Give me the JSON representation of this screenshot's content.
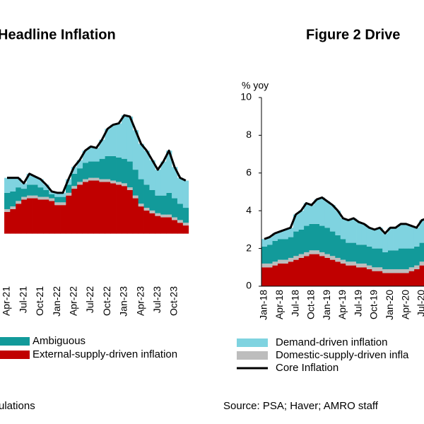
{
  "chart_data": [
    {
      "type": "stacked_bar",
      "title": "Headline Inflation",
      "categories": [
        "Apr-21",
        null,
        null,
        "Jul-21",
        null,
        null,
        "Oct-21",
        null,
        null,
        "Jan-22",
        null,
        null,
        "Apr-22",
        null,
        null,
        "Jul-22",
        null,
        null,
        "Oct-22",
        null,
        null,
        "Jan-23",
        null,
        null,
        "Apr-23",
        null,
        null,
        "Jul-23",
        null,
        null,
        "Oct-23",
        null,
        null
      ],
      "series": [
        {
          "name": "External-supply-driven inflation",
          "color": "#c00000",
          "values": [
            1.6,
            1.8,
            2.2,
            2.5,
            2.6,
            2.6,
            2.5,
            2.5,
            2.4,
            2.1,
            2.1,
            2.8,
            3.3,
            3.6,
            3.8,
            3.9,
            3.9,
            3.8,
            3.8,
            3.7,
            3.6,
            3.5,
            3.2,
            2.6,
            2.0,
            1.7,
            1.5,
            1.3,
            1.2,
            1.2,
            1.0,
            0.8,
            0.6
          ]
        },
        {
          "color": "#bdbdbd",
          "values": [
            0.2,
            0.2,
            0.2,
            0.2,
            0.2,
            0.2,
            0.2,
            0.2,
            0.2,
            0.2,
            0.2,
            0.2,
            0.2,
            0.2,
            0.2,
            0.2,
            0.2,
            0.2,
            0.2,
            0.2,
            0.2,
            0.2,
            0.2,
            0.2,
            0.2,
            0.2,
            0.2,
            0.2,
            0.2,
            0.2,
            0.2,
            0.2,
            0.2
          ]
        },
        {
          "name": "Ambiguous",
          "color": "#129a9a",
          "values": [
            1.2,
            1.1,
            1.0,
            0.6,
            0.8,
            0.8,
            0.7,
            0.5,
            0.3,
            0.4,
            0.4,
            0.6,
            0.9,
            1.0,
            1.2,
            1.2,
            1.2,
            1.5,
            1.7,
            1.8,
            1.8,
            1.8,
            1.9,
            1.9,
            1.8,
            1.7,
            1.5,
            1.3,
            1.4,
            1.6,
            1.4,
            1.2,
            1.1
          ]
        },
        {
          "color": "#7fd3e0",
          "values": [
            1.1,
            1.0,
            0.7,
            0.4,
            0.8,
            0.6,
            0.6,
            0.4,
            0.2,
            0.3,
            0.3,
            0.4,
            0.5,
            0.6,
            0.9,
            1.1,
            1.0,
            1.4,
            2.0,
            2.3,
            2.5,
            3.2,
            3.3,
            2.9,
            2.6,
            2.5,
            2.2,
            1.9,
            2.5,
            3.1,
            2.3,
            1.9,
            2.0
          ]
        },
        {
          "kind": "line",
          "color": "#000000",
          "values": [
            4.1,
            4.1,
            4.1,
            3.7,
            4.4,
            4.2,
            4.0,
            3.6,
            3.1,
            3.0,
            3.0,
            4.0,
            4.9,
            5.4,
            6.1,
            6.4,
            6.3,
            6.9,
            7.7,
            8.0,
            8.1,
            8.7,
            8.6,
            7.6,
            6.6,
            6.1,
            5.4,
            4.7,
            5.3,
            6.1,
            4.9,
            4.1,
            3.9
          ]
        }
      ],
      "ylim": [
        -3.6,
        10
      ],
      "source": "ulations"
    },
    {
      "type": "stacked_bar",
      "title": "Figure 2 Drive",
      "y_label": "% yoy",
      "categories": [
        "Jan-18",
        null,
        null,
        "Apr-18",
        null,
        null,
        "Jul-18",
        null,
        null,
        "Oct-18",
        null,
        null,
        "Jan-19",
        null,
        null,
        "Apr-19",
        null,
        null,
        "Jul-19",
        null,
        null,
        "Oct-19",
        null,
        null,
        "Jan-20",
        null,
        null,
        "Apr-20",
        null,
        null,
        "Jul-20",
        null
      ],
      "series": [
        {
          "color": "#c00000",
          "values": [
            1.0,
            1.0,
            1.1,
            1.2,
            1.2,
            1.3,
            1.4,
            1.5,
            1.6,
            1.7,
            1.7,
            1.6,
            1.5,
            1.4,
            1.3,
            1.2,
            1.1,
            1.1,
            1.0,
            1.0,
            0.9,
            0.8,
            0.8,
            0.7,
            0.7,
            0.7,
            0.7,
            0.7,
            0.8,
            0.9,
            1.1,
            1.2
          ]
        },
        {
          "name": "Domestic-supply-driven infla",
          "color": "#bdbdbd",
          "values": [
            0.2,
            0.2,
            0.2,
            0.2,
            0.2,
            0.2,
            0.2,
            0.2,
            0.2,
            0.2,
            0.2,
            0.2,
            0.2,
            0.2,
            0.2,
            0.2,
            0.2,
            0.2,
            0.2,
            0.2,
            0.2,
            0.2,
            0.2,
            0.2,
            0.2,
            0.2,
            0.2,
            0.2,
            0.2,
            0.2,
            0.2,
            0.2
          ]
        },
        {
          "color": "#129a9a",
          "values": [
            0.9,
            1.0,
            1.1,
            1.1,
            1.1,
            1.1,
            1.3,
            1.3,
            1.4,
            1.4,
            1.4,
            1.4,
            1.4,
            1.3,
            1.2,
            1.1,
            1.0,
            1.0,
            1.0,
            1.0,
            1.0,
            1.0,
            1.0,
            0.9,
            1.0,
            1.0,
            1.1,
            1.1,
            1.0,
            1.0,
            1.0,
            1.0
          ]
        },
        {
          "name": "Demand-driven inflation",
          "color": "#7fd3e0",
          "values": [
            0.4,
            0.4,
            0.4,
            0.4,
            0.5,
            0.5,
            0.9,
            1.0,
            1.2,
            1.0,
            1.3,
            1.5,
            1.4,
            1.4,
            1.3,
            1.1,
            1.2,
            1.3,
            1.2,
            1.1,
            1.0,
            1.0,
            1.1,
            1.0,
            1.2,
            1.2,
            1.3,
            1.3,
            1.2,
            1.0,
            1.2,
            1.2
          ]
        },
        {
          "name": "Core Inflation",
          "kind": "line",
          "color": "#000000",
          "values": [
            2.5,
            2.6,
            2.8,
            2.9,
            3.0,
            3.1,
            3.8,
            4.0,
            4.4,
            4.3,
            4.6,
            4.7,
            4.5,
            4.3,
            4.0,
            3.6,
            3.5,
            3.6,
            3.4,
            3.3,
            3.1,
            3.0,
            3.1,
            2.8,
            3.1,
            3.1,
            3.3,
            3.3,
            3.2,
            3.1,
            3.5,
            3.6
          ]
        }
      ],
      "ylim": [
        0,
        10
      ],
      "yticks": [
        0,
        2,
        4,
        6,
        8,
        10
      ],
      "source": "Source: PSA; Haver; AMRO staff"
    }
  ]
}
